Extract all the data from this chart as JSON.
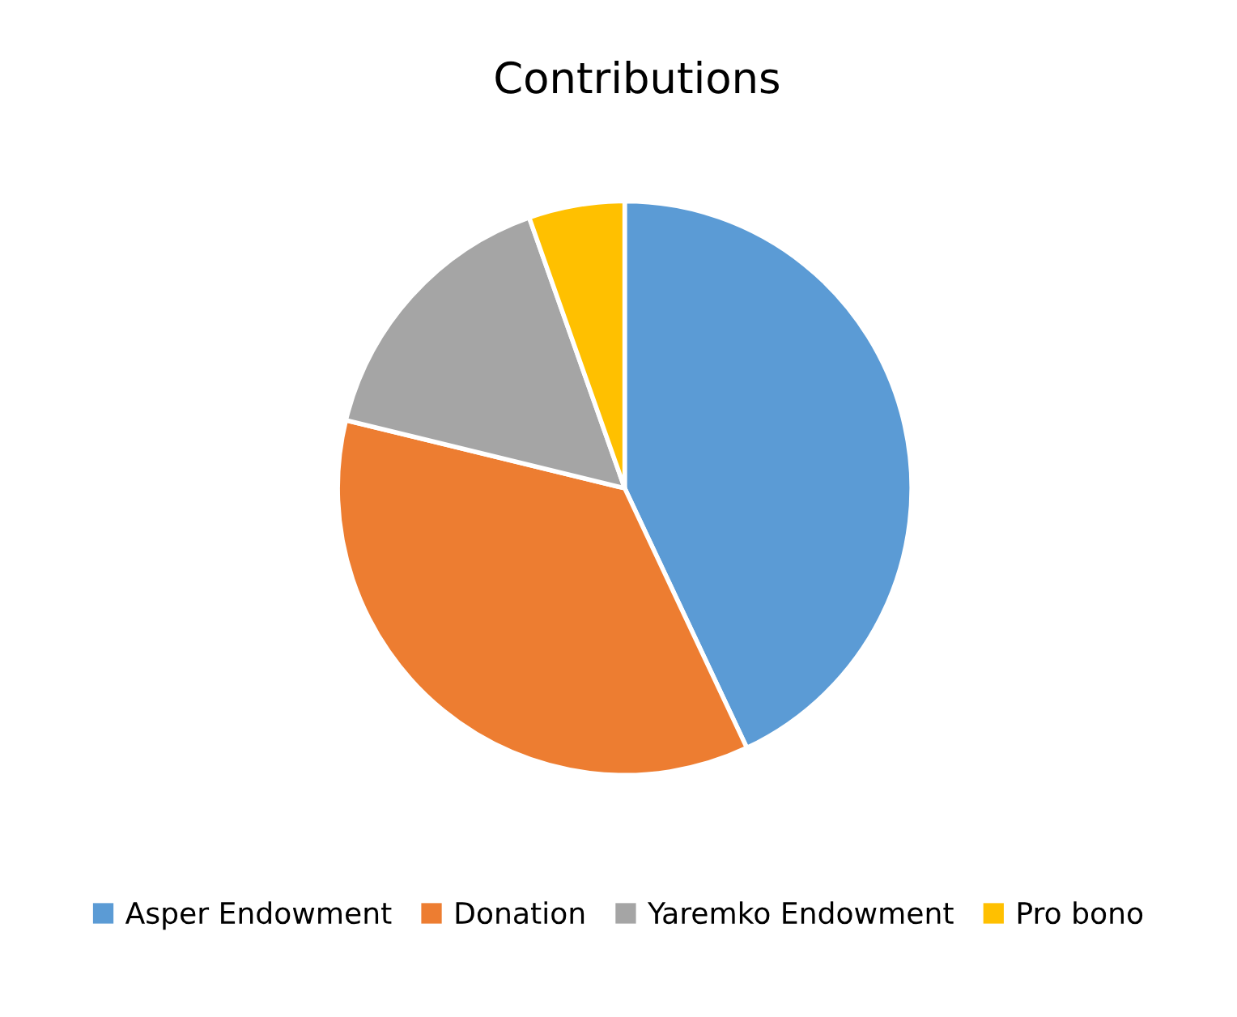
{
  "chart_data": {
    "type": "pie",
    "title": "Contributions",
    "categories": [
      "Asper Endowment",
      "Donation",
      "Yaremko Endowment",
      "Pro bono"
    ],
    "values": [
      43,
      35.8,
      15.8,
      5.4
    ],
    "colors": [
      "#5b9bd5",
      "#ed7d31",
      "#a5a5a5",
      "#ffc000"
    ],
    "legend": "bottom"
  }
}
